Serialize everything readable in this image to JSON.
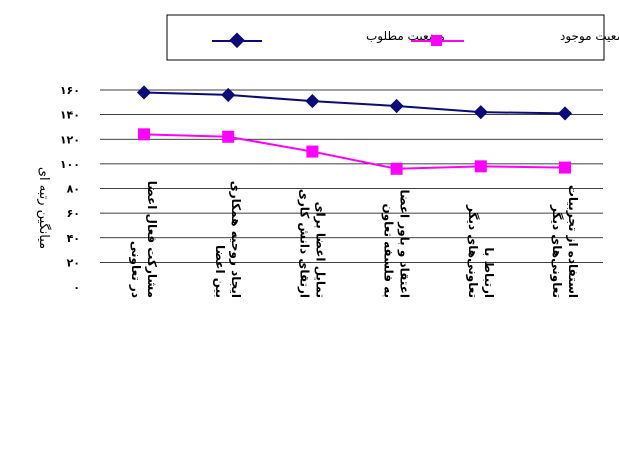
{
  "chart_data": {
    "type": "line",
    "categories": [
      "مشارکت فعال اعضا در تعاونی",
      "ایجاد روحیه همکاری بین اعضا",
      "تمایل اعضا برای ارتقای دانش کاری",
      "اعتقاد و باور اعضا به فلسفه تعاون",
      "ارتباط با تعاونی‌های دیگر",
      "استفاده از تجربیات تعاونی‌های دیگر"
    ],
    "series": [
      {
        "name": "وضعیت مطلوب",
        "values": [
          158,
          156,
          151,
          147,
          142,
          141
        ],
        "color": "#0a0a7a",
        "marker": "diamond"
      },
      {
        "name": "وضعیت موجود",
        "values": [
          124,
          122,
          110,
          96,
          98,
          97
        ],
        "color": "#ff00ff",
        "marker": "square"
      }
    ],
    "ylabel": "میانگین رتبه ای",
    "ylim": [
      0,
      160
    ],
    "yticks": [
      "۰",
      "۲۰",
      "۴۰",
      "۶۰",
      "۸۰",
      "۱۰۰",
      "۱۲۰",
      "۱۴۰",
      "۱۶۰"
    ],
    "grid": true,
    "legend": "top"
  }
}
